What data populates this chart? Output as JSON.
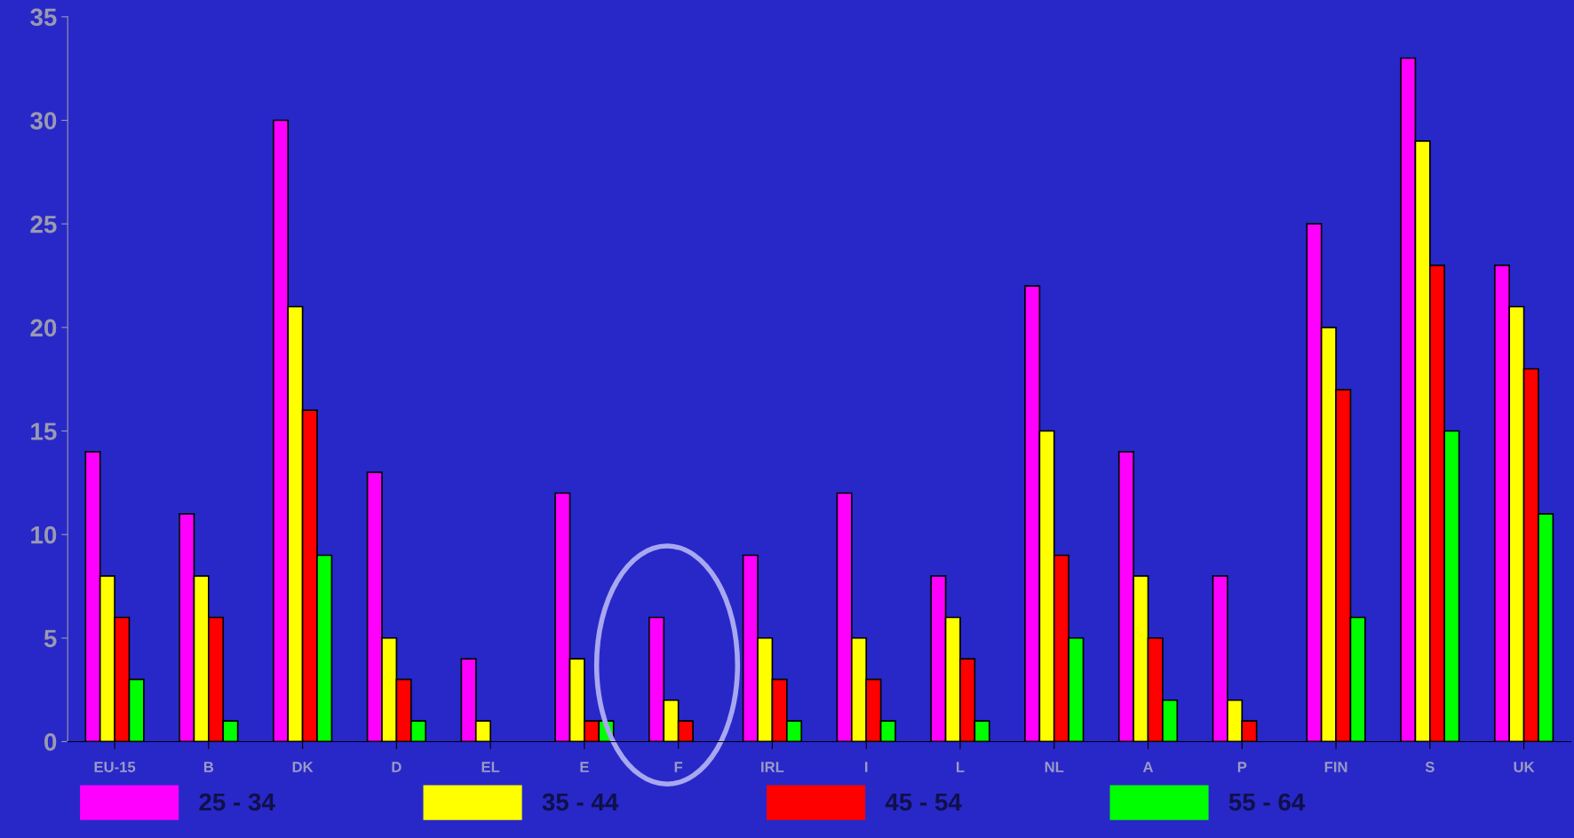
{
  "chart_data": {
    "type": "bar",
    "categories": [
      "EU-15",
      "B",
      "DK",
      "D",
      "EL",
      "E",
      "F",
      "IRL",
      "I",
      "L",
      "NL",
      "A",
      "P",
      "FIN",
      "S",
      "UK"
    ],
    "series": [
      {
        "name": "25 - 34",
        "color": "#ff00ff",
        "values": [
          14,
          11,
          30,
          13,
          4,
          12,
          6,
          9,
          12,
          8,
          22,
          14,
          8,
          25,
          33,
          23
        ]
      },
      {
        "name": "35 - 44",
        "color": "#ffff00",
        "values": [
          8,
          8,
          21,
          5,
          1,
          4,
          2,
          5,
          5,
          6,
          15,
          8,
          2,
          20,
          29,
          21
        ]
      },
      {
        "name": "45 - 54",
        "color": "#ff0000",
        "values": [
          6,
          6,
          16,
          3,
          0,
          1,
          1,
          3,
          3,
          4,
          9,
          5,
          1,
          17,
          23,
          18
        ]
      },
      {
        "name": "55 - 64",
        "color": "#00ff00",
        "values": [
          3,
          1,
          9,
          1,
          0,
          1,
          0,
          1,
          1,
          1,
          5,
          2,
          0,
          6,
          15,
          11
        ]
      }
    ],
    "ylim": [
      0,
      35
    ],
    "yticks": [
      0,
      5,
      10,
      15,
      20,
      25,
      30,
      35
    ],
    "grid": false,
    "legend": "bottom"
  }
}
